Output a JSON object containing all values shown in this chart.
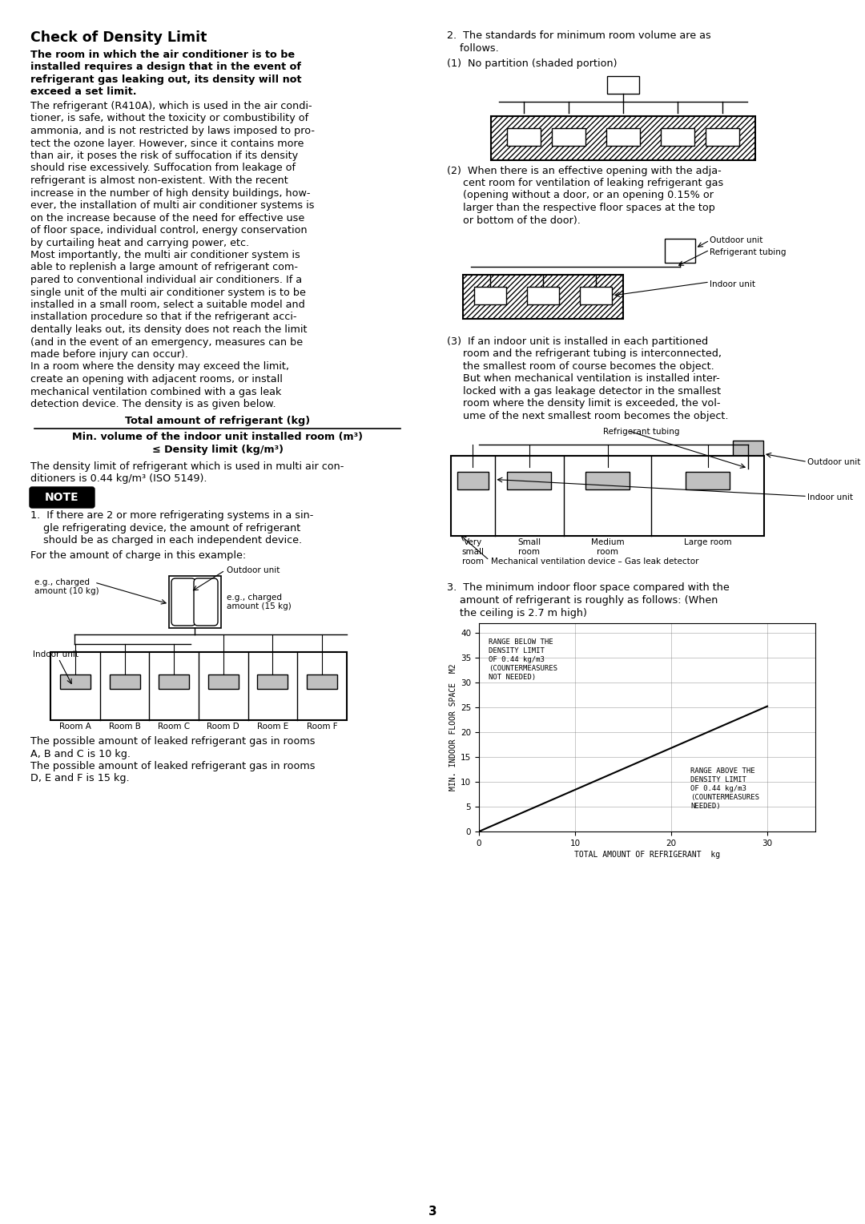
{
  "title": "Check of Density Limit",
  "bg_color": "#ffffff",
  "text_color": "#000000",
  "page_number": "3",
  "bold_intro": "The room in which the air conditioner is to be installed requires a design that in the event of refrigerant gas leaking out, its density will not exceed a set limit.",
  "para1": "The refrigerant (R410A), which is used in the air conditioner, is safe, without the toxicity or combustibility of ammonia, and is not restricted by laws imposed to protect the ozone layer. However, since it contains more than air, it poses the risk of suffocation if its density should rise excessively. Suffocation from leakage of refrigerant is almost non-existent. With the recent increase in the number of high density buildings, however, the installation of multi air conditioner systems is on the increase because of the need for effective use of floor space, individual control, energy conservation by curtailing heat and carrying power, etc.",
  "para2": "Most importantly, the multi air conditioner system is able to replenish a large amount of refrigerant compared to conventional individual air conditioners. If a single unit of the multi air conditioner system is to be installed in a small room, select a suitable model and installation procedure so that if the refrigerant accidentally leaks out, its density does not reach the limit (and in the event of an emergency, measures can be made before injury can occur).",
  "para3": "In a room where the density may exceed the limit, create an opening with adjacent rooms, or install mechanical ventilation combined with a gas leak detection device. The density is as given below.",
  "formula_top": "Total amount of refrigerant (kg)",
  "formula_bottom1": "Min. volume of the indoor unit installed room (m³)",
  "formula_bottom2": "≤ Density limit (kg/m³)",
  "density_note": "The density limit of refrigerant which is used in multi air conditioners is 0.44 kg/m³ (ISO 5149).",
  "note_label": "NOTE",
  "note1_prefix": "1.",
  "note1_text": "If there are 2 or more refrigerating systems in a single refrigerating device, the amount of refrigerant should be as charged in each independent device.",
  "example_label": "For the amount of charge in this example:",
  "exp1_line1": "The possible amount of leaked refrigerant gas in rooms",
  "exp1_line2": "A, B and C is 10 kg.",
  "exp2_line1": "The possible amount of leaked refrigerant gas in rooms",
  "exp2_line2": "D, E and F is 15 kg.",
  "item2_line1": "2.  The standards for minimum room volume are as",
  "item2_line2": "    follows.",
  "item2_1": "(1)  No partition (shaded portion)",
  "item2_2_lines": [
    "(2)  When there is an effective opening with the adja-",
    "     cent room for ventilation of leaking refrigerant gas",
    "     (opening without a door, or an opening 0.15% or",
    "     larger than the respective floor spaces at the top",
    "     or bottom of the door)."
  ],
  "item2_3_lines": [
    "(3)  If an indoor unit is installed in each partitioned",
    "     room and the refrigerant tubing is interconnected,",
    "     the smallest room of course becomes the object.",
    "     But when mechanical ventilation is installed inter-",
    "     locked with a gas leakage detector in the smallest",
    "     room where the density limit is exceeded, the vol-",
    "     ume of the next smallest room becomes the object."
  ],
  "item3_lines": [
    "3.  The minimum indoor floor space compared with the",
    "    amount of refrigerant is roughly as follows: (When",
    "    the ceiling is 2.7 m high)"
  ],
  "graph_xlabel": "TOTAL AMOUNT OF REFRIGERANT  kg",
  "graph_ylabel": "MIN. INDOOR FLOOR SPACE  M2",
  "graph_upper_label": "RANGE BELOW THE\nDENSITY LIMIT\nOF 0.44 kg/m3\n(COUNTERMEASURES\nNOT NEEDED)",
  "graph_lower_label": "RANGE ABOVE THE\nDENSITY LIMIT\nOF 0.44 kg/m3\n(COUNTERMEASURES\nNEEDED)",
  "indoor_unit_color": "#c0c0c0",
  "outdoor_unit_color": "#c0c0c0"
}
